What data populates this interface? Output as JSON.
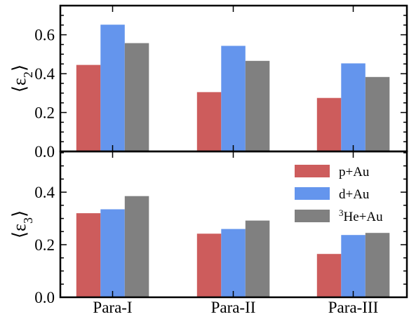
{
  "chart_data": [
    {
      "type": "bar",
      "panel": "top",
      "categories": [
        "Para-I",
        "Para-II",
        "Para-III"
      ],
      "series": [
        {
          "name": "p+Au",
          "color": "#cd5c5c",
          "values": [
            0.445,
            0.305,
            0.275
          ]
        },
        {
          "name": "d+Au",
          "color": "#6495ed",
          "values": [
            0.652,
            0.543,
            0.453
          ]
        },
        {
          "name": "³He+Au",
          "color": "#808080",
          "values": [
            0.557,
            0.466,
            0.383
          ]
        }
      ],
      "ylabel_main": "ε",
      "ylabel_sub": "2",
      "ylim": [
        0,
        0.75
      ],
      "yticks": [
        "0.0",
        "0.2",
        "0.4",
        "0.6"
      ],
      "grid": false
    },
    {
      "type": "bar",
      "panel": "bottom",
      "categories": [
        "Para-I",
        "Para-II",
        "Para-III"
      ],
      "series": [
        {
          "name": "p+Au",
          "color": "#cd5c5c",
          "values": [
            0.32,
            0.242,
            0.165
          ]
        },
        {
          "name": "d+Au",
          "color": "#6495ed",
          "values": [
            0.335,
            0.26,
            0.237
          ]
        },
        {
          "name": "³He+Au",
          "color": "#808080",
          "values": [
            0.385,
            0.292,
            0.245
          ]
        }
      ],
      "ylabel_main": "ε",
      "ylabel_sub": "3",
      "ylim": [
        0,
        0.555
      ],
      "yticks": [
        "0.0",
        "0.2",
        "0.4"
      ],
      "grid": false,
      "legend": {
        "placement": "top-right",
        "entries": [
          {
            "label": "p+Au",
            "color": "#cd5c5c"
          },
          {
            "label": "d+Au",
            "color": "#6495ed"
          },
          {
            "sup": "3",
            "label": "He+Au",
            "color": "#808080"
          }
        ]
      }
    }
  ]
}
